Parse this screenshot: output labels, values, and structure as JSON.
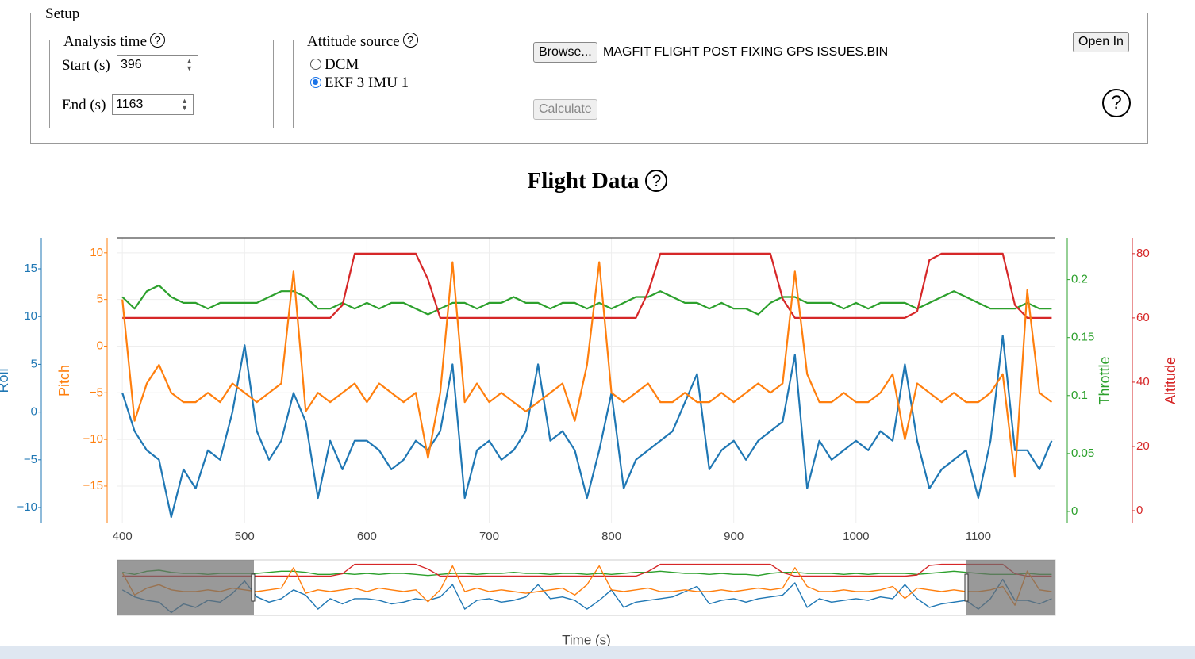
{
  "setup": {
    "legend": "Setup",
    "help_icon": "?",
    "analysis_time": {
      "legend": "Analysis time",
      "start_label": "Start (s)",
      "start_value": "396",
      "end_label": "End (s)",
      "end_value": "1163"
    },
    "attitude_source": {
      "legend": "Attitude source",
      "options": [
        "DCM",
        "EKF 3 IMU 1"
      ]
    },
    "browse_button": "Browse...",
    "file_name": "MAGFIT FLIGHT POST FIXING GPS ISSUES.BIN",
    "calculate_button": "Calculate",
    "open_in_button": "Open In"
  },
  "chart_data": {
    "type": "line",
    "title": "Flight Data",
    "x_label": "Time (s)",
    "xlim": [
      396,
      1163
    ],
    "xticks": [
      400,
      500,
      600,
      700,
      800,
      900,
      1000,
      1100
    ],
    "grid": true,
    "axes": [
      {
        "title": "Roll",
        "color": "#1f77b4",
        "lim": [
          -11.66,
          18.24
        ],
        "ticks": [
          {
            "value": -10,
            "label": "−10"
          },
          {
            "value": -5,
            "label": "−5"
          },
          0,
          5,
          10,
          15
        ]
      },
      {
        "title": "Pitch",
        "color": "#ff7f0e",
        "lim": [
          -19.0,
          11.6
        ],
        "ticks": [
          {
            "value": -15,
            "label": "−15"
          },
          {
            "value": -10,
            "label": "−10"
          },
          {
            "value": -5,
            "label": "−5"
          },
          0,
          5,
          10
        ]
      },
      {
        "title": "Throttle",
        "color": "#2ca02c",
        "lim": [
          -0.0103,
          0.236
        ],
        "ticks": [
          0,
          0.05,
          0.1,
          0.15,
          0.2
        ]
      },
      {
        "title": "Altitude",
        "color": "#d62728",
        "lim": [
          -3.95,
          84.9
        ],
        "ticks": [
          0,
          20,
          40,
          60,
          80
        ]
      }
    ],
    "x": [
      400,
      410,
      420,
      430,
      440,
      450,
      460,
      470,
      480,
      490,
      500,
      510,
      520,
      530,
      540,
      550,
      560,
      570,
      580,
      590,
      600,
      610,
      620,
      630,
      640,
      650,
      660,
      670,
      680,
      690,
      700,
      710,
      720,
      730,
      740,
      750,
      760,
      770,
      780,
      790,
      800,
      810,
      820,
      830,
      840,
      850,
      860,
      870,
      880,
      890,
      900,
      910,
      920,
      930,
      940,
      950,
      960,
      970,
      980,
      990,
      1000,
      1010,
      1020,
      1030,
      1040,
      1050,
      1060,
      1070,
      1080,
      1090,
      1100,
      1110,
      1120,
      1130,
      1140,
      1150,
      1160
    ],
    "series": [
      {
        "axis": 0,
        "color": "#1f77b4",
        "values": [
          2,
          -2,
          -4,
          -5,
          -11,
          -6,
          -8,
          -4,
          -5,
          0,
          7,
          -2,
          -5,
          -3,
          2,
          -1,
          -9,
          -3,
          -6,
          -3,
          -3,
          -4,
          -6,
          -5,
          -3,
          -4,
          -2,
          5,
          -9,
          -4,
          -3,
          -5,
          -4,
          -2,
          5,
          -3,
          -2,
          -4,
          -9,
          -4,
          2,
          -8,
          -5,
          -4,
          -3,
          -2,
          1,
          4,
          -6,
          -4,
          -3,
          -5,
          -3,
          -2,
          -1,
          6,
          -8,
          -3,
          -5,
          -4,
          -3,
          -4,
          -2,
          -3,
          5,
          -3,
          -8,
          -6,
          -5,
          -4,
          -9,
          -3,
          8,
          -4,
          -4,
          -6,
          -3
        ]
      },
      {
        "axis": 1,
        "color": "#ff7f0e",
        "values": [
          5,
          -8,
          -4,
          -2,
          -5,
          -6,
          -6,
          -5,
          -6,
          -4,
          -5,
          -6,
          -5,
          -4,
          8,
          -7,
          -5,
          -6,
          -5,
          -4,
          -6,
          -4,
          -5,
          -6,
          -5,
          -12,
          -5,
          9,
          -6,
          -4,
          -6,
          -5,
          -6,
          -7,
          -6,
          -5,
          -4,
          -8,
          -2,
          9,
          -5,
          -6,
          -5,
          -4,
          -6,
          -6,
          -5,
          -6,
          -6,
          -5,
          -6,
          -5,
          -4,
          -5,
          -4,
          8,
          -3,
          -6,
          -6,
          -5,
          -6,
          -6,
          -5,
          -3,
          -10,
          -4,
          -5,
          -6,
          -5,
          -6,
          -6,
          -5,
          -3,
          -14,
          6,
          -5,
          -6
        ]
      },
      {
        "axis": 2,
        "color": "#2ca02c",
        "values": [
          0.185,
          0.175,
          0.19,
          0.195,
          0.185,
          0.18,
          0.18,
          0.175,
          0.18,
          0.18,
          0.18,
          0.18,
          0.185,
          0.19,
          0.19,
          0.185,
          0.175,
          0.175,
          0.18,
          0.175,
          0.18,
          0.175,
          0.18,
          0.18,
          0.175,
          0.17,
          0.175,
          0.18,
          0.18,
          0.175,
          0.18,
          0.18,
          0.185,
          0.18,
          0.18,
          0.175,
          0.18,
          0.18,
          0.175,
          0.18,
          0.175,
          0.18,
          0.185,
          0.185,
          0.19,
          0.185,
          0.18,
          0.18,
          0.175,
          0.18,
          0.175,
          0.175,
          0.17,
          0.18,
          0.185,
          0.185,
          0.18,
          0.18,
          0.18,
          0.175,
          0.18,
          0.175,
          0.18,
          0.18,
          0.18,
          0.175,
          0.18,
          0.185,
          0.19,
          0.185,
          0.18,
          0.175,
          0.175,
          0.175,
          0.18,
          0.175,
          0.175
        ]
      },
      {
        "axis": 3,
        "color": "#d62728",
        "values": [
          60,
          60,
          60,
          60,
          60,
          60,
          60,
          60,
          60,
          60,
          60,
          60,
          60,
          60,
          60,
          60,
          60,
          60,
          64,
          80,
          80,
          80,
          80,
          80,
          80,
          72,
          60,
          60,
          60,
          60,
          60,
          60,
          60,
          60,
          60,
          60,
          60,
          60,
          60,
          60,
          60,
          60,
          60,
          68,
          80,
          80,
          80,
          80,
          80,
          80,
          80,
          80,
          80,
          80,
          66,
          60,
          60,
          60,
          60,
          60,
          60,
          60,
          60,
          60,
          60,
          62,
          78,
          80,
          80,
          80,
          80,
          80,
          80,
          64,
          60,
          60,
          60
        ]
      }
    ]
  }
}
